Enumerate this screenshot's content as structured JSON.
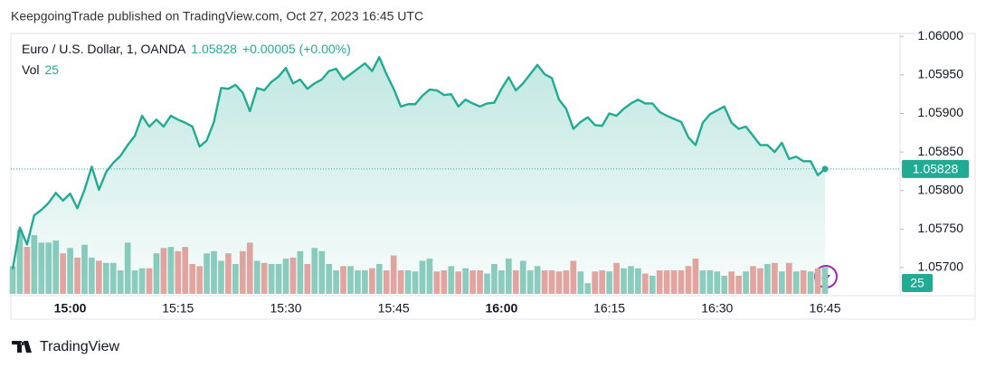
{
  "header": {
    "text": "KeepgoingTrade published on TradingView.com, Oct 27, 2023 16:45 UTC"
  },
  "footer": {
    "brand": "TradingView"
  },
  "chart_data": {
    "type": "line",
    "change": "+0.00005 (+0.00%)",
    "categories": [
      null,
      null,
      null,
      null,
      null,
      null,
      null,
      null,
      "15:00",
      null,
      null,
      null,
      null,
      null,
      null,
      null,
      null,
      null,
      null,
      null,
      null,
      null,
      null,
      "15:15",
      null,
      null,
      null,
      null,
      null,
      null,
      null,
      null,
      null,
      null,
      null,
      null,
      null,
      null,
      "15:30",
      null,
      null,
      null,
      null,
      null,
      null,
      null,
      null,
      null,
      null,
      null,
      null,
      null,
      null,
      "15:45",
      null,
      null,
      null,
      null,
      null,
      null,
      null,
      null,
      null,
      null,
      null,
      null,
      null,
      null,
      "16:00",
      null,
      null,
      null,
      null,
      null,
      null,
      null,
      null,
      null,
      null,
      null,
      null,
      null,
      null,
      "16:15",
      null,
      null,
      null,
      null,
      null,
      null,
      null,
      null,
      null,
      null,
      null,
      null,
      null,
      null,
      "16:30",
      null,
      null,
      null,
      null,
      null,
      null,
      null,
      null,
      null,
      null,
      null,
      null,
      null,
      null,
      "16:45"
    ],
    "series": [
      {
        "name": "Euro / U.S. Dollar, 1, OANDA",
        "color": "#22ab94",
        "values": [
          1.05698,
          1.05752,
          1.0573,
          1.05768,
          1.05775,
          1.05784,
          1.05797,
          1.05787,
          1.05796,
          1.05777,
          1.05801,
          1.05831,
          1.05801,
          1.05824,
          1.05836,
          1.05845,
          1.05859,
          1.05871,
          1.05897,
          1.05883,
          1.05892,
          1.05883,
          1.05897,
          1.05892,
          1.05888,
          1.05883,
          1.05857,
          1.05865,
          1.05889,
          1.05933,
          1.05932,
          1.05937,
          1.05927,
          1.05903,
          1.05933,
          1.0593,
          1.05941,
          1.05948,
          1.05959,
          1.05939,
          1.05944,
          1.05932,
          1.05939,
          1.05944,
          1.05955,
          1.05958,
          1.05944,
          1.05951,
          1.05958,
          1.05965,
          1.05955,
          1.05973,
          1.05951,
          1.05932,
          1.05909,
          1.05912,
          1.05912,
          1.05923,
          1.05931,
          1.0593,
          1.05924,
          1.05925,
          1.05909,
          1.05918,
          1.05913,
          1.05909,
          1.05913,
          1.05914,
          1.05932,
          1.05947,
          1.0593,
          1.05939,
          1.05951,
          1.05963,
          1.05951,
          1.05946,
          1.05918,
          1.05906,
          1.0588,
          1.05889,
          1.05895,
          1.05885,
          1.05884,
          1.059,
          1.05897,
          1.05906,
          1.05913,
          1.05918,
          1.05913,
          1.05913,
          1.05902,
          1.05897,
          1.05893,
          1.05889,
          1.05869,
          1.05859,
          1.05888,
          1.05899,
          1.05904,
          1.05909,
          1.05888,
          1.0588,
          1.05883,
          1.05871,
          1.05859,
          1.05859,
          1.0585,
          1.05862,
          1.05841,
          1.05844,
          1.05838,
          1.05838,
          1.0582,
          1.05828
        ]
      },
      {
        "name": "Vol",
        "up_color": "#8fcdbf",
        "down_color": "#eca3a0",
        "values": [
          26,
          60,
          44,
          55,
          48,
          48,
          50,
          38,
          43,
          34,
          46,
          34,
          31,
          29,
          29,
          22,
          48,
          22,
          24,
          24,
          38,
          43,
          44,
          40,
          44,
          28,
          26,
          38,
          40,
          31,
          38,
          28,
          40,
          48,
          31,
          29,
          28,
          28,
          33,
          34,
          40,
          28,
          43,
          40,
          28,
          22,
          26,
          26,
          22,
          22,
          24,
          28,
          22,
          36,
          22,
          22,
          21,
          31,
          33,
          21,
          22,
          26,
          21,
          24,
          22,
          22,
          19,
          28,
          22,
          33,
          22,
          31,
          22,
          26,
          22,
          22,
          21,
          22,
          31,
          21,
          10,
          21,
          22,
          21,
          29,
          24,
          26,
          24,
          19,
          17,
          22,
          22,
          22,
          22,
          26,
          33,
          22,
          22,
          21,
          17,
          21,
          17,
          21,
          26,
          24,
          28,
          29,
          21,
          29,
          21,
          22,
          21,
          24,
          25
        ]
      }
    ],
    "ylim": [
      1.05666,
      1.06012
    ],
    "yticks": [
      {
        "value": 1.057,
        "label": "1.05700"
      },
      {
        "value": 1.0575,
        "label": "1.05750"
      },
      {
        "value": 1.058,
        "label": "1.05800"
      },
      {
        "value": 1.0585,
        "label": "1.05850"
      },
      {
        "value": 1.059,
        "label": "1.05900"
      },
      {
        "value": 1.0595,
        "label": "1.05950"
      },
      {
        "value": 1.06,
        "label": "1.06000"
      }
    ],
    "grid": false
  }
}
